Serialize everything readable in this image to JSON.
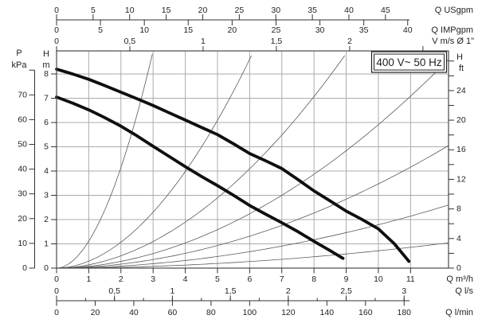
{
  "chart_data": {
    "type": "line",
    "annotation_box": "400 V~ 50 Hz",
    "plot": {
      "q_min": 0,
      "q_max": 12.18,
      "h_min": 0,
      "h_max": 8.95,
      "grid_q": [
        1,
        2,
        3,
        4,
        5,
        6,
        7,
        8,
        9,
        10,
        11
      ],
      "grid_h": [
        1,
        2,
        3,
        4,
        5,
        6,
        7,
        8
      ],
      "grid_on": true
    },
    "colors": {
      "grid": "#ababab",
      "frame": "#4a4a4a",
      "axis": "#333333",
      "text": "#1f1f1f",
      "pump_curve": "#0f0f0f",
      "system_curve": "#5a5a5a",
      "box_border": "#222222",
      "box_fill": "#ffffff"
    },
    "axes": {
      "us": {
        "title": "Q USgpm",
        "factor": 0.22712,
        "ticks": [
          0,
          5,
          10,
          15,
          20,
          25,
          30,
          35,
          40,
          45
        ],
        "tick_labels": [
          "0",
          "5",
          "10",
          "15",
          "20",
          "25",
          "30",
          "35",
          "40",
          "45"
        ]
      },
      "imp": {
        "title": "Q IMPgpm",
        "factor": 0.27277,
        "ticks": [
          0,
          5,
          10,
          15,
          20,
          25,
          30,
          35,
          40
        ],
        "tick_labels": [
          "0",
          "5",
          "10",
          "15",
          "20",
          "25",
          "30",
          "35",
          "40"
        ]
      },
      "v": {
        "title": "V m/s Ø 1\"",
        "factor": 4.554,
        "ticks": [
          0,
          0.5,
          1,
          1.5,
          2
        ],
        "tick_labels": [
          "0",
          "0,5",
          "1",
          "1,5",
          "2"
        ],
        "minor_ticks": [
          2.5
        ]
      },
      "m3h": {
        "title": "Q m³/h",
        "factor": 1,
        "ticks": [
          0,
          1,
          2,
          3,
          4,
          5,
          6,
          7,
          8,
          9,
          10,
          11
        ],
        "tick_labels": [
          "0",
          "1",
          "2",
          "3",
          "4",
          "5",
          "6",
          "7",
          "8",
          "9",
          "10",
          "11"
        ]
      },
      "ls": {
        "title": "Q l/s",
        "factor": 3.6,
        "ticks": [
          0,
          0.5,
          1,
          1.5,
          2,
          2.5,
          3
        ],
        "tick_labels": [
          "0",
          "0,5",
          "1",
          "1,5",
          "2",
          "2,5",
          "3"
        ],
        "minor_step": 0.25,
        "minor_max": 3.25
      },
      "lmin": {
        "title": "Q l/min",
        "factor": 0.06,
        "ticks": [
          0,
          20,
          40,
          60,
          80,
          100,
          120,
          140,
          160,
          180
        ],
        "tick_labels": [
          "0",
          "20",
          "40",
          "60",
          "80",
          "100",
          "120",
          "140",
          "160",
          "180"
        ]
      },
      "hm": {
        "title_lines": [
          "H",
          "m"
        ],
        "ticks": [
          0,
          1,
          2,
          3,
          4,
          5,
          6,
          7,
          8
        ],
        "tick_labels": [
          "0",
          "1",
          "2",
          "3",
          "4",
          "5",
          "6",
          "7",
          "8"
        ]
      },
      "kpa": {
        "title_lines": [
          "P",
          "kPa"
        ],
        "m_per_unit": 0.101972,
        "ticks": [
          0,
          10,
          20,
          30,
          40,
          50,
          60,
          70
        ],
        "tick_labels": [
          "0",
          "10",
          "20",
          "30",
          "40",
          "50",
          "60",
          "70"
        ],
        "unlabeled_ticks": [
          80
        ]
      },
      "ft": {
        "title_lines": [
          "H",
          "ft"
        ],
        "m_per_unit": 0.3048,
        "ticks": [
          0,
          4,
          8,
          12,
          16,
          20,
          24
        ],
        "tick_labels": [
          "0",
          "4",
          "8",
          "12",
          "16",
          "20",
          "24"
        ],
        "minor_step": 2,
        "minor_max": 28
      }
    },
    "pump_curves": [
      {
        "name": "pump-curve-upper",
        "points": [
          [
            0,
            8.2
          ],
          [
            0.5,
            8.0
          ],
          [
            1,
            7.78
          ],
          [
            1.5,
            7.52
          ],
          [
            2,
            7.25
          ],
          [
            2.5,
            6.98
          ],
          [
            3,
            6.7
          ],
          [
            3.5,
            6.4
          ],
          [
            4,
            6.1
          ],
          [
            4.5,
            5.8
          ],
          [
            5,
            5.5
          ],
          [
            5.5,
            5.12
          ],
          [
            6,
            4.72
          ],
          [
            6.5,
            4.42
          ],
          [
            7,
            4.1
          ],
          [
            7.5,
            3.65
          ],
          [
            8,
            3.18
          ],
          [
            8.5,
            2.77
          ],
          [
            9,
            2.35
          ],
          [
            9.5,
            2.0
          ],
          [
            10,
            1.62
          ],
          [
            10.5,
            1.0
          ],
          [
            10.95,
            0.28
          ]
        ]
      },
      {
        "name": "pump-curve-lower",
        "points": [
          [
            0,
            7.05
          ],
          [
            0.5,
            6.8
          ],
          [
            1,
            6.52
          ],
          [
            1.5,
            6.2
          ],
          [
            2,
            5.85
          ],
          [
            2.5,
            5.45
          ],
          [
            3,
            5.02
          ],
          [
            3.5,
            4.6
          ],
          [
            4,
            4.18
          ],
          [
            4.5,
            3.78
          ],
          [
            5,
            3.4
          ],
          [
            5.5,
            3.0
          ],
          [
            6,
            2.58
          ],
          [
            6.5,
            2.22
          ],
          [
            7,
            1.87
          ],
          [
            7.5,
            1.5
          ],
          [
            8,
            1.1
          ],
          [
            8.5,
            0.72
          ],
          [
            8.9,
            0.4
          ]
        ]
      }
    ],
    "system_curves": [
      {
        "name": "system-curve-1",
        "a": 1.11,
        "exp": 1.9,
        "q_end": 3.02
      },
      {
        "name": "system-curve-2",
        "a": 0.286,
        "exp": 1.9,
        "q_end": 6.14
      },
      {
        "name": "system-curve-3",
        "a": 0.136,
        "exp": 1.9,
        "q_end": 9.08
      },
      {
        "name": "system-curve-4",
        "a": 0.0744,
        "exp": 1.9,
        "q_end": 12.18
      },
      {
        "name": "system-curve-5",
        "a": 0.0437,
        "exp": 1.9,
        "q_end": 12.18
      },
      {
        "name": "system-curve-6",
        "a": 0.0225,
        "exp": 1.9,
        "q_end": 12.18
      },
      {
        "name": "system-curve-7",
        "a": 0.009,
        "exp": 1.9,
        "q_end": 12.18
      }
    ]
  }
}
